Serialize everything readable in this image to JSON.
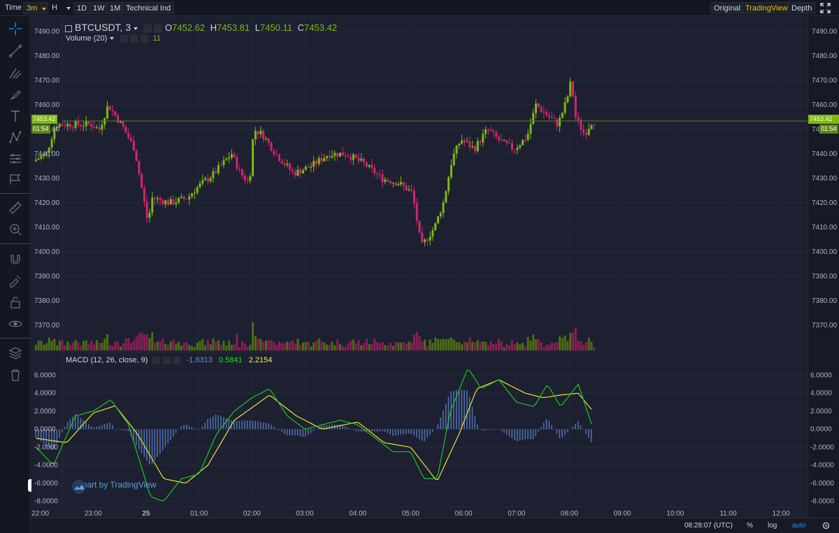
{
  "toolbar": {
    "time_label": "Time",
    "interval": "3m",
    "chart_style": "H",
    "range_1d": "1D",
    "range_1w": "1W",
    "range_1m": "1M",
    "indicators": "Technical Ind",
    "view_original": "Original",
    "view_tradingview": "TradingView",
    "view_depth": "Depth"
  },
  "legend": {
    "symbol": "BTCUSDT, 3",
    "o_label": "O",
    "o_value": "7452.62",
    "h_label": "H",
    "h_value": "7453.81",
    "l_label": "L",
    "l_value": "7450.11",
    "c_label": "C",
    "c_value": "7453.42",
    "volume_label": "Volume (20)",
    "volume_value": "11"
  },
  "macd_legend": {
    "label": "MACD (12, 26, close, 9)",
    "hist": "-1.8313",
    "macd": "0.5841",
    "signal": "2.2154"
  },
  "price_axis": {
    "ticks": [
      "7490.00",
      "7480.00",
      "7470.00",
      "7460.00",
      "7450.00",
      "7440.00",
      "7430.00",
      "7420.00",
      "7410.00",
      "7400.00",
      "7390.00",
      "7380.00",
      "7370.00"
    ],
    "left_current_price": "7453.42",
    "left_countdown": "01:54",
    "right_current_price": "7453.42",
    "right_countdown": "01:54"
  },
  "macd_axis": {
    "ticks": [
      "6.0000",
      "4.0000",
      "2.0000",
      "0.0000",
      "-2.0000",
      "-4.0000",
      "-6.0000",
      "-8.0000"
    ]
  },
  "time_axis": {
    "ticks": [
      "22:00",
      "23:00",
      "25",
      "01:00",
      "02:00",
      "03:00",
      "04:00",
      "05:00",
      "06:00",
      "07:00",
      "08:00",
      "09:00",
      "10:00",
      "11:00",
      "12:00"
    ]
  },
  "watermark": "Chart by TradingView",
  "bottom": {
    "clock": "08:28:07 (UTC)",
    "percent": "%",
    "log": "log",
    "auto": "auto"
  },
  "colors": {
    "up": "#7fb810",
    "down": "#d6246e",
    "macd_line": "#22c322",
    "signal_line": "#e8e430",
    "hist": "#4f6fb0",
    "accent": "#f0b90b"
  },
  "chart_data": {
    "type": "candlestick",
    "symbol": "BTCUSDT",
    "interval": "3m",
    "ylim": [
      7362,
      7492
    ],
    "x_range": [
      "21:50",
      "12:30"
    ],
    "close_path": [
      {
        "t": "21:55",
        "p": 7437
      },
      {
        "t": "22:10",
        "p": 7440
      },
      {
        "t": "22:20",
        "p": 7452
      },
      {
        "t": "22:40",
        "p": 7452
      },
      {
        "t": "23:00",
        "p": 7452
      },
      {
        "t": "23:10",
        "p": 7450
      },
      {
        "t": "23:20",
        "p": 7460
      },
      {
        "t": "23:35",
        "p": 7452
      },
      {
        "t": "23:50",
        "p": 7442
      },
      {
        "t": "00:05",
        "p": 7412
      },
      {
        "t": "00:10",
        "p": 7422
      },
      {
        "t": "00:30",
        "p": 7420
      },
      {
        "t": "00:50",
        "p": 7422
      },
      {
        "t": "01:00",
        "p": 7426
      },
      {
        "t": "01:20",
        "p": 7432
      },
      {
        "t": "01:40",
        "p": 7440
      },
      {
        "t": "01:50",
        "p": 7432
      },
      {
        "t": "02:00",
        "p": 7428
      },
      {
        "t": "02:05",
        "p": 7450
      },
      {
        "t": "02:15",
        "p": 7448
      },
      {
        "t": "02:30",
        "p": 7440
      },
      {
        "t": "02:50",
        "p": 7432
      },
      {
        "t": "03:10",
        "p": 7435
      },
      {
        "t": "03:30",
        "p": 7440
      },
      {
        "t": "03:50",
        "p": 7440
      },
      {
        "t": "04:10",
        "p": 7436
      },
      {
        "t": "04:30",
        "p": 7430
      },
      {
        "t": "04:50",
        "p": 7428
      },
      {
        "t": "05:05",
        "p": 7424
      },
      {
        "t": "05:15",
        "p": 7402
      },
      {
        "t": "05:30",
        "p": 7410
      },
      {
        "t": "05:40",
        "p": 7420
      },
      {
        "t": "05:50",
        "p": 7438
      },
      {
        "t": "06:00",
        "p": 7446
      },
      {
        "t": "06:15",
        "p": 7442
      },
      {
        "t": "06:30",
        "p": 7450
      },
      {
        "t": "06:45",
        "p": 7445
      },
      {
        "t": "07:00",
        "p": 7442
      },
      {
        "t": "07:15",
        "p": 7447
      },
      {
        "t": "07:25",
        "p": 7460
      },
      {
        "t": "07:40",
        "p": 7455
      },
      {
        "t": "07:50",
        "p": 7452
      },
      {
        "t": "08:00",
        "p": 7462
      },
      {
        "t": "08:05",
        "p": 7470
      },
      {
        "t": "08:10",
        "p": 7455
      },
      {
        "t": "08:20",
        "p": 7448
      },
      {
        "t": "08:28",
        "p": 7453
      }
    ],
    "macd_ylim": [
      -8.5,
      7.2
    ],
    "macd_path": [
      {
        "t": "21:55",
        "v": -2.0
      },
      {
        "t": "22:15",
        "v": -4.0
      },
      {
        "t": "22:40",
        "v": 1.5
      },
      {
        "t": "23:00",
        "v": 2.0
      },
      {
        "t": "23:20",
        "v": 3.3
      },
      {
        "t": "23:40",
        "v": 0.5
      },
      {
        "t": "00:05",
        "v": -7.5
      },
      {
        "t": "00:20",
        "v": -8.0
      },
      {
        "t": "00:40",
        "v": -5.5
      },
      {
        "t": "01:00",
        "v": -5.0
      },
      {
        "t": "01:20",
        "v": -0.5
      },
      {
        "t": "01:40",
        "v": 2.0
      },
      {
        "t": "02:00",
        "v": 3.5
      },
      {
        "t": "02:20",
        "v": 4.5
      },
      {
        "t": "02:40",
        "v": 1.5
      },
      {
        "t": "03:00",
        "v": 0.0
      },
      {
        "t": "03:20",
        "v": 0.5
      },
      {
        "t": "03:40",
        "v": 1.0
      },
      {
        "t": "04:00",
        "v": 0.5
      },
      {
        "t": "04:20",
        "v": -1.0
      },
      {
        "t": "04:40",
        "v": -2.5
      },
      {
        "t": "05:00",
        "v": -2.5
      },
      {
        "t": "05:15",
        "v": -5.5
      },
      {
        "t": "05:30",
        "v": -5.5
      },
      {
        "t": "05:45",
        "v": 2.0
      },
      {
        "t": "06:05",
        "v": 6.8
      },
      {
        "t": "06:20",
        "v": 4.5
      },
      {
        "t": "06:40",
        "v": 5.5
      },
      {
        "t": "07:00",
        "v": 3.0
      },
      {
        "t": "07:20",
        "v": 2.5
      },
      {
        "t": "07:35",
        "v": 5.0
      },
      {
        "t": "07:50",
        "v": 2.5
      },
      {
        "t": "08:10",
        "v": 5.0
      },
      {
        "t": "08:25",
        "v": 0.6
      }
    ],
    "signal_path": [
      {
        "t": "21:55",
        "v": -1.0
      },
      {
        "t": "22:30",
        "v": -1.5
      },
      {
        "t": "23:00",
        "v": 1.8
      },
      {
        "t": "23:25",
        "v": 2.6
      },
      {
        "t": "23:50",
        "v": -0.5
      },
      {
        "t": "00:20",
        "v": -5.5
      },
      {
        "t": "00:45",
        "v": -6.0
      },
      {
        "t": "01:10",
        "v": -4.0
      },
      {
        "t": "01:40",
        "v": 1.0
      },
      {
        "t": "02:20",
        "v": 3.8
      },
      {
        "t": "02:50",
        "v": 1.5
      },
      {
        "t": "03:20",
        "v": 0.0
      },
      {
        "t": "04:00",
        "v": 0.8
      },
      {
        "t": "04:30",
        "v": -1.5
      },
      {
        "t": "05:00",
        "v": -2.0
      },
      {
        "t": "05:30",
        "v": -5.8
      },
      {
        "t": "05:55",
        "v": -0.5
      },
      {
        "t": "06:15",
        "v": 4.5
      },
      {
        "t": "06:40",
        "v": 5.5
      },
      {
        "t": "07:10",
        "v": 4.0
      },
      {
        "t": "07:30",
        "v": 3.5
      },
      {
        "t": "07:50",
        "v": 3.8
      },
      {
        "t": "08:10",
        "v": 4.0
      },
      {
        "t": "08:25",
        "v": 2.2
      }
    ]
  }
}
